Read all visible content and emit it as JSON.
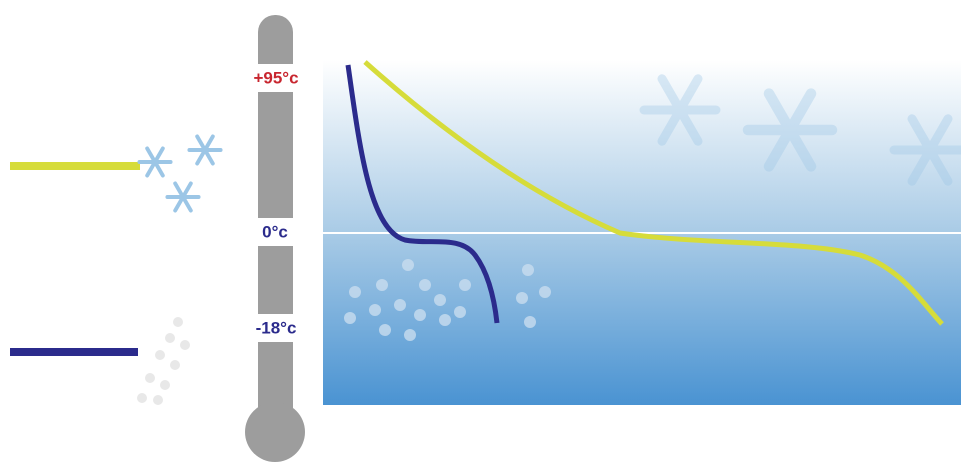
{
  "thermometer": {
    "labels": [
      "+95°c",
      "0°c",
      "-18°c"
    ]
  }
}
